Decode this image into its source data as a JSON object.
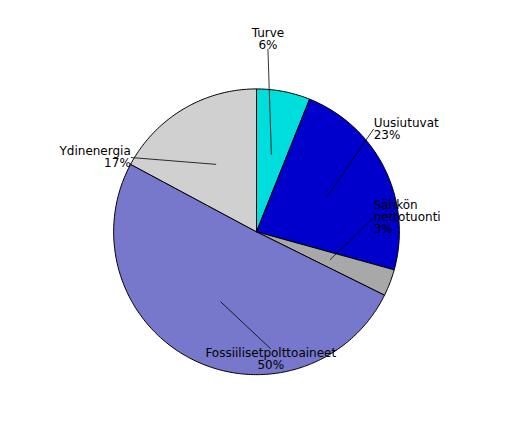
{
  "chart_data": {
    "type": "pie",
    "categories": [
      "Turve",
      "Uusiutuvat",
      "Sähkön\nnettotuonti",
      "Fossiilisetpolttoaineet",
      "Ydinenergia"
    ],
    "values": [
      6,
      23,
      3,
      50,
      17
    ],
    "value_labels": [
      "6%",
      "23%",
      "3%",
      "50%",
      "17%"
    ],
    "colors": [
      "#00DDDD",
      "#0000CC",
      "#A8A8A8",
      "#7777CC",
      "#D0D0D0"
    ],
    "data_labels": true
  }
}
